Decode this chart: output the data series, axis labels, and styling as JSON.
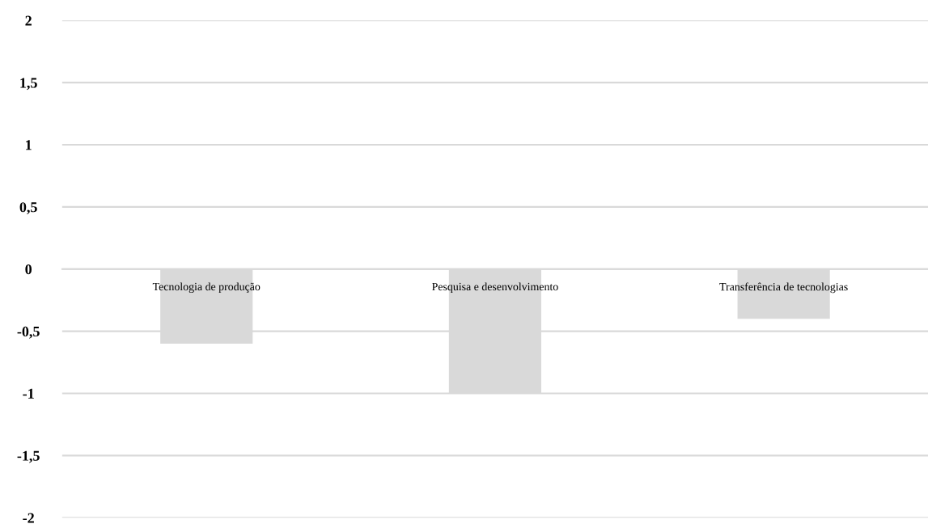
{
  "chart_data": {
    "type": "bar",
    "categories": [
      "Tecnologia de produção",
      "Pesquisa e desenvolvimento",
      "Transferência de tecnologias"
    ],
    "values": [
      -0.6,
      -1,
      -0.4
    ],
    "color": "#d9d9d9",
    "ylim": [
      -2,
      2
    ],
    "yticks": [
      {
        "value": -2,
        "label": "-2"
      },
      {
        "value": -1.5,
        "label": "-1,5"
      },
      {
        "value": -1,
        "label": "-1"
      },
      {
        "value": -0.5,
        "label": "-0,5"
      },
      0,
      {
        "value": 0.5,
        "label": "0,5"
      },
      1,
      {
        "value": 1.5,
        "label": "1,5"
      },
      2
    ],
    "grid": "y",
    "legend": false
  }
}
